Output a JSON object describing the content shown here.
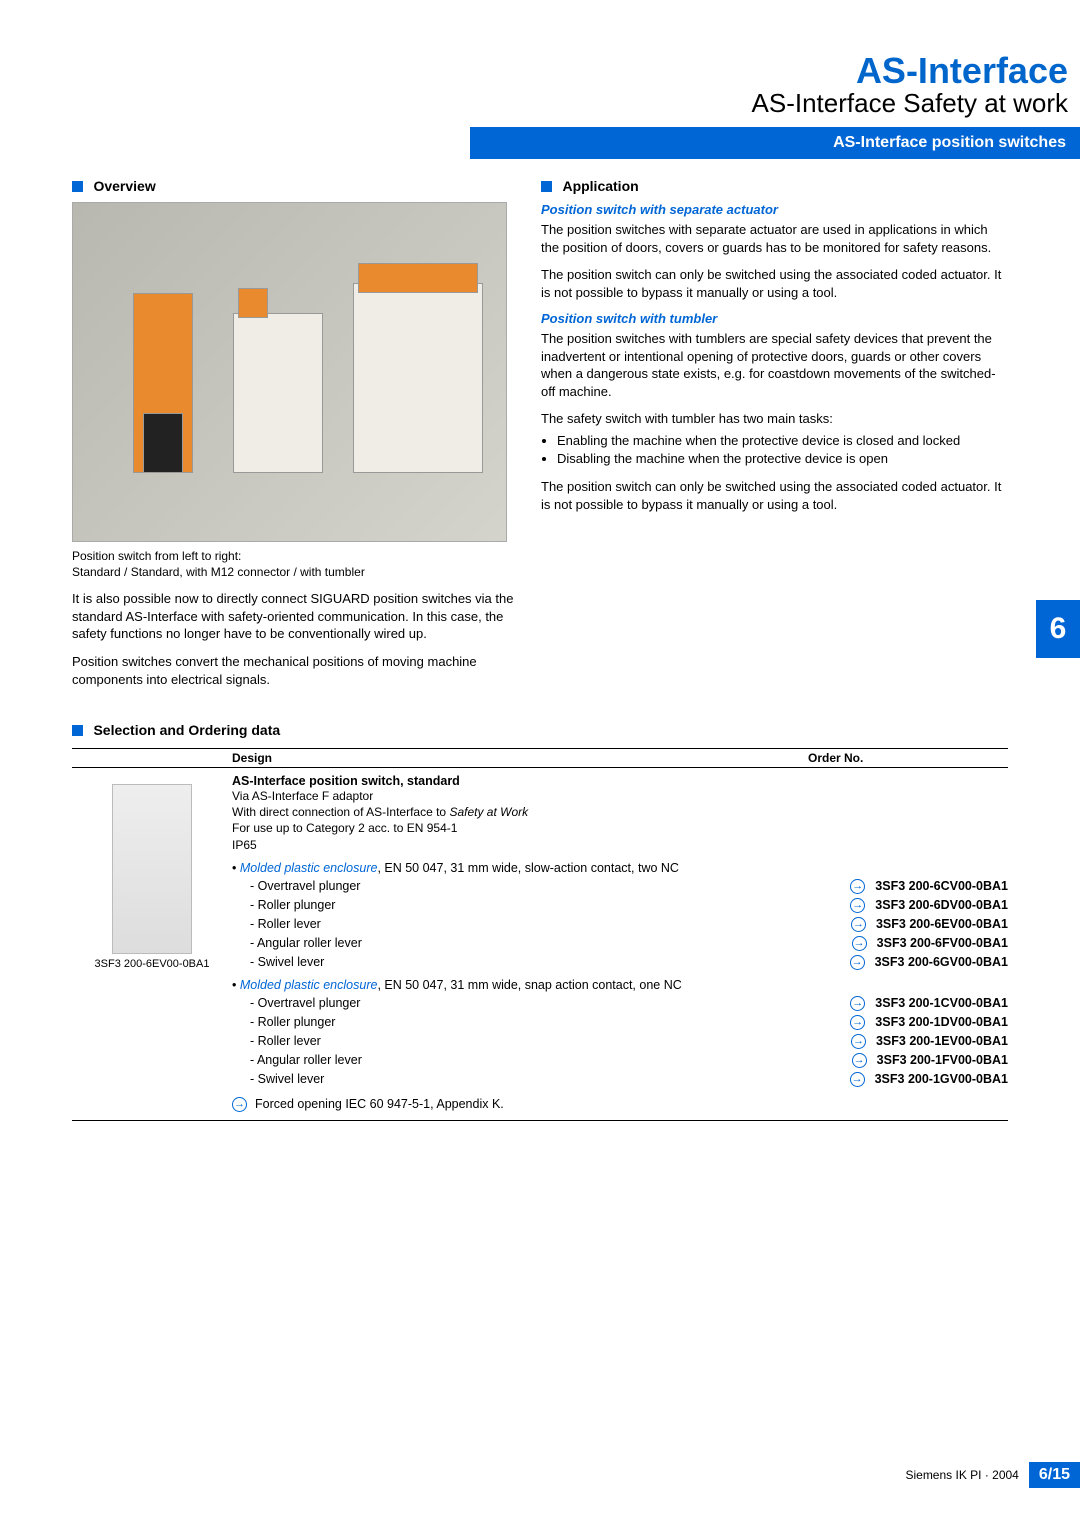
{
  "header": {
    "title1": "AS-Interface",
    "title2": "AS-Interface Safety at work",
    "bluebar": "AS-Interface position switches"
  },
  "overview": {
    "heading": "Overview",
    "caption_l1": "Position switch from left to right:",
    "caption_l2": "Standard / Standard, with M12 connector / with tumbler",
    "para1": "It is also possible now to directly connect SIGUARD position switches via the standard AS-Interface with safety-oriented communication. In this case, the safety functions no longer have to be conventionally wired up.",
    "para2": "Position switches convert the mechanical positions of moving machine components into electrical signals."
  },
  "application": {
    "heading": "Application",
    "sub1": "Position switch with separate actuator",
    "p1": "The position switches with separate actuator are used in applications in which the position of doors, covers or guards has to be monitored for safety reasons.",
    "p2": "The position switch can only be switched using the associated coded actuator. It is not possible to bypass it manually or using a tool.",
    "sub2": "Position switch with tumbler",
    "p3": "The position switches with tumblers are special safety devices that prevent the inadvertent or intentional opening of protective doors, guards or other covers when a dangerous state exists, e.g. for coastdown movements of the switched-off machine.",
    "p4": "The safety switch with tumbler has two main tasks:",
    "b1": "Enabling the machine when the protective device is closed and locked",
    "b2": "Disabling the machine when the protective device is open",
    "p5": "The position switch can only be switched using the associated coded actuator. It is not possible to bypass it manually or using a tool."
  },
  "sidetab": "6",
  "ordering": {
    "heading": "Selection and Ordering data",
    "th_design": "Design",
    "th_orderno": "Order No.",
    "product_title": "AS-Interface position switch, standard",
    "product_l1": "Via AS-Interface F adaptor",
    "product_l2_a": "With direct connection of AS-Interface to ",
    "product_l2_b": "Safety at Work",
    "product_l3": "For use up to Category 2 acc. to EN 954-1",
    "product_l4": "IP65",
    "group1_ital": "Molded plastic enclosure",
    "group1_rest": ", EN 50 047, 31 mm wide, slow-action contact, two NC",
    "group2_ital": "Molded plastic enclosure",
    "group2_rest": ", EN 50 047, 31 mm wide, snap action contact, one NC",
    "rows1": [
      {
        "label": "- Overtravel plunger",
        "order": "3SF3 200-6CV00-0BA1"
      },
      {
        "label": "- Roller plunger",
        "order": "3SF3 200-6DV00-0BA1"
      },
      {
        "label": "- Roller lever",
        "order": "3SF3 200-6EV00-0BA1"
      },
      {
        "label": "- Angular roller lever",
        "order": "3SF3 200-6FV00-0BA1"
      },
      {
        "label": "- Swivel lever",
        "order": "3SF3 200-6GV00-0BA1"
      }
    ],
    "rows2": [
      {
        "label": "- Overtravel plunger",
        "order": "3SF3 200-1CV00-0BA1"
      },
      {
        "label": "- Roller plunger",
        "order": "3SF3 200-1DV00-0BA1"
      },
      {
        "label": "- Roller lever",
        "order": "3SF3 200-1EV00-0BA1"
      },
      {
        "label": "- Angular roller lever",
        "order": "3SF3 200-1FV00-0BA1"
      },
      {
        "label": "- Swivel lever",
        "order": "3SF3 200-1GV00-0BA1"
      }
    ],
    "img_caption": "3SF3 200-6EV00-0BA1",
    "legend": "Forced opening IEC 60 947-5-1, Appendix K."
  },
  "footer": {
    "text": "Siemens IK PI · 2004",
    "page": "6/15"
  },
  "colors": {
    "accent_blue": "#0066d6",
    "text_black": "#000000",
    "bg": "#ffffff"
  }
}
